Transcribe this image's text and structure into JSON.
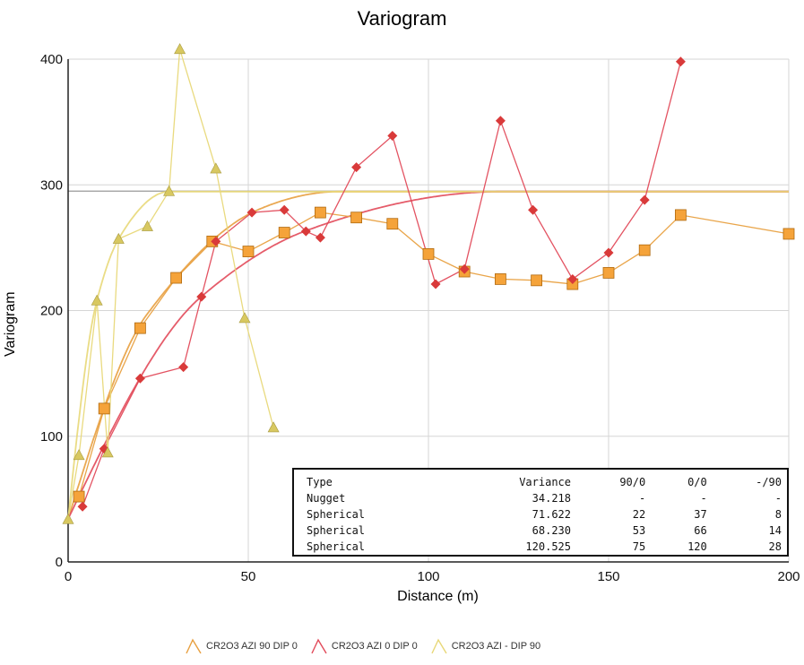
{
  "chart_data": {
    "type": "line",
    "title": "Variogram",
    "xlabel": "Distance (m)",
    "ylabel": "Variogram",
    "xlim": [
      0,
      200
    ],
    "ylim": [
      0,
      400
    ],
    "xticks": [
      "0",
      "50",
      "100",
      "150",
      "200"
    ],
    "yticks": [
      "0",
      "100",
      "200",
      "300",
      "400"
    ],
    "grid": true,
    "sill_reference": 295,
    "legend_position": "bottom",
    "series": [
      {
        "name": "CR2O3 AZI 90 DIP 0",
        "color": "#e8a040",
        "marker_color": "#f5a33a",
        "marker": "square",
        "experimental": {
          "x": [
            3,
            10,
            20,
            30,
            40,
            50,
            60,
            70,
            80,
            90,
            100,
            110,
            120,
            130,
            140,
            150,
            160,
            170,
            200
          ],
          "y": [
            52,
            122,
            186,
            226,
            255,
            247,
            262,
            278,
            274,
            269,
            245,
            231,
            225,
            224,
            221,
            230,
            248,
            276,
            261
          ]
        },
        "model": {
          "nugget": 34.218,
          "ranges": [
            22,
            53,
            75
          ]
        }
      },
      {
        "name": "CR2O3 AZI 0 DIP 0",
        "color": "#e24a5a",
        "marker_color": "#d93a3a",
        "marker": "diamond",
        "experimental": {
          "x": [
            4,
            10,
            20,
            32,
            37,
            41,
            51,
            60,
            66,
            70,
            80,
            90,
            102,
            110,
            120,
            129,
            140,
            150,
            160,
            170
          ],
          "y": [
            44,
            90,
            146,
            155,
            211,
            255,
            278,
            280,
            263,
            258,
            314,
            339,
            221,
            233,
            351,
            280,
            225,
            246,
            288,
            398
          ]
        },
        "model": {
          "nugget": 34.218,
          "ranges": [
            37,
            66,
            120
          ]
        }
      },
      {
        "name": "CR2O3 AZI - DIP 90",
        "color": "#e8d878",
        "marker_color": "#d8c860",
        "marker": "triangle",
        "experimental": {
          "x": [
            0,
            3,
            8,
            11,
            14,
            22,
            28,
            31,
            41,
            49,
            57
          ],
          "y": [
            34,
            85,
            208,
            87,
            257,
            267,
            295,
            408,
            313,
            194,
            107
          ]
        },
        "model": {
          "nugget": 34.218,
          "ranges": [
            8,
            14,
            28
          ]
        }
      }
    ]
  },
  "table": {
    "header": [
      "Type",
      "Variance",
      "90/0",
      "0/0",
      "-/90"
    ],
    "rows": [
      [
        "Nugget",
        "34.218",
        "-",
        "-",
        "-"
      ],
      [
        "Spherical",
        "71.622",
        "22",
        "37",
        "8"
      ],
      [
        "Spherical",
        "68.230",
        "53",
        "66",
        "14"
      ],
      [
        "Spherical",
        "120.525",
        "75",
        "120",
        "28"
      ]
    ]
  },
  "legend": [
    {
      "label": "CR2O3 AZI 90 DIP 0",
      "color": "#e8a040"
    },
    {
      "label": "CR2O3 AZI 0 DIP 0",
      "color": "#e24a5a"
    },
    {
      "label": "CR2O3 AZI - DIP 90",
      "color": "#e8d878"
    }
  ]
}
